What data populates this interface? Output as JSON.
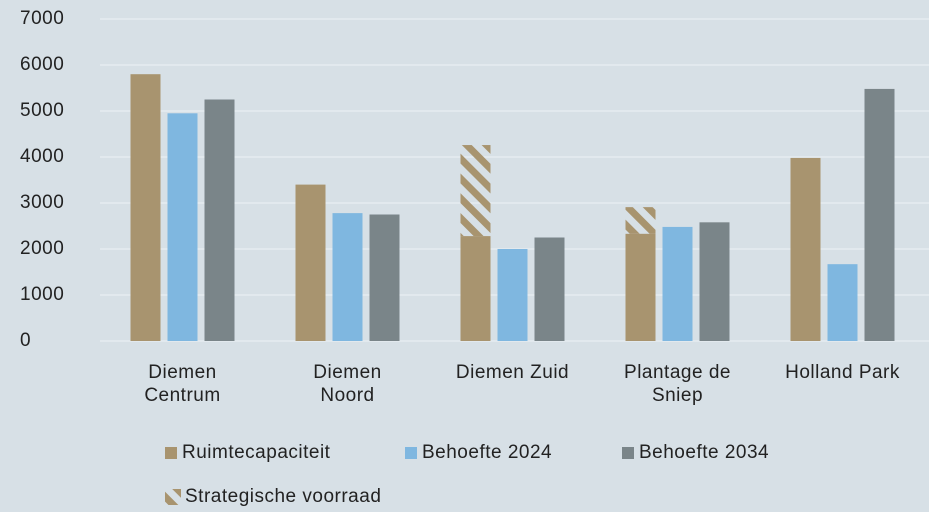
{
  "chart_data": {
    "type": "bar",
    "categories": [
      "Diemen\nCentrum",
      "Diemen\nNoord",
      "Diemen Zuid",
      "Plantage de\nSniep",
      "Holland Park"
    ],
    "series": [
      {
        "name": "Ruimtecapaciteit",
        "color": "#a8946f",
        "values": [
          5800,
          3400,
          2280,
          2330,
          3980
        ]
      },
      {
        "name": "Behoefte 2024",
        "color": "#7fb7e0",
        "values": [
          4950,
          2780,
          2000,
          2480,
          1670
        ]
      },
      {
        "name": "Behoefte 2034",
        "color": "#7a8589",
        "values": [
          5250,
          2750,
          2250,
          2580,
          5480
        ]
      },
      {
        "name": "Strategische voorraad",
        "color": "#a8946f",
        "pattern": "hatch",
        "stack_on": 0,
        "values": [
          null,
          null,
          1980,
          580,
          null
        ]
      }
    ],
    "ylim": [
      0,
      7000
    ],
    "yticks": [
      0,
      1000,
      2000,
      3000,
      4000,
      5000,
      6000,
      7000
    ],
    "grid": true,
    "legend": "bottom"
  }
}
